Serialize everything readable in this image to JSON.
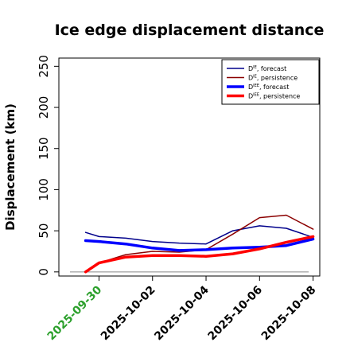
{
  "chart_data": {
    "type": "line",
    "title": "Ice edge displacement distance",
    "xlabel": "",
    "ylabel": "Displacement (km)",
    "ylim": [
      -5,
      260
    ],
    "yticks": [
      0,
      50,
      100,
      150,
      200,
      250
    ],
    "xlim": [
      "2025-09-28T12:00",
      "2025-10-08T06:00"
    ],
    "x": [
      "2025-09-29T12:00",
      "2025-09-30T00:00",
      "2025-10-01T00:00",
      "2025-10-02T00:00",
      "2025-10-03T00:00",
      "2025-10-04T00:00",
      "2025-10-05T00:00",
      "2025-10-06T00:00",
      "2025-10-07T00:00",
      "2025-10-08T00:00"
    ],
    "xticks": [
      {
        "label": "2025-09-30",
        "color": "#2ca02c"
      },
      {
        "label": "2025-10-02",
        "color": "#000000"
      },
      {
        "label": "2025-10-04",
        "color": "#000000"
      },
      {
        "label": "2025-10-06",
        "color": "#000000"
      },
      {
        "label": "2025-10-08",
        "color": "#000000"
      }
    ],
    "zero_line": true,
    "grid": false,
    "legend_position": "top-right",
    "series": [
      {
        "name": "D^IE, forecast",
        "sym": "D",
        "sup": "IE",
        "desc": ", forecast",
        "color": "#00008b",
        "width": 1.5,
        "values": [
          48,
          43,
          41,
          37,
          35,
          34,
          50,
          56,
          53,
          42
        ]
      },
      {
        "name": "D^IE, persistence",
        "sym": "D",
        "sup": "IE",
        "desc": ", persistence",
        "color": "#8b0000",
        "width": 1.5,
        "values": [
          0,
          11,
          21,
          25,
          24,
          27,
          46,
          66,
          69,
          52
        ]
      },
      {
        "name": "D^IEE, forecast",
        "sym": "D",
        "sup": "IEE",
        "desc": ", forecast",
        "color": "#0000ff",
        "width": 3.5,
        "values": [
          38,
          37,
          34,
          29,
          26,
          27,
          29,
          30,
          32,
          40
        ]
      },
      {
        "name": "D^IEE, persistence",
        "sym": "D",
        "sup": "IEE",
        "desc": ", persistence",
        "color": "#ff0000",
        "width": 3.5,
        "values": [
          0,
          11,
          18,
          20,
          20,
          19,
          22,
          28,
          36,
          43
        ]
      }
    ]
  }
}
